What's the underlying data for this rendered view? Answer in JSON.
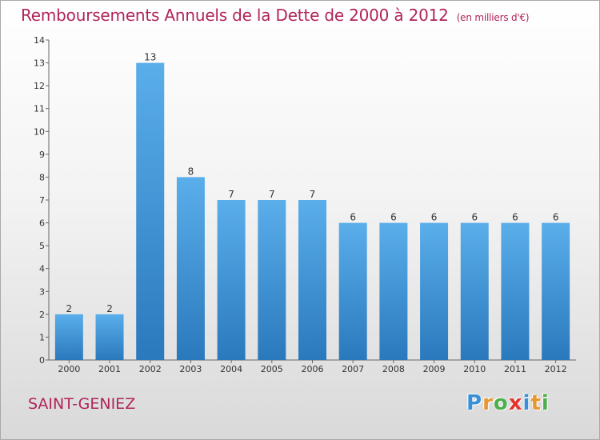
{
  "title": "Remboursements Annuels de la Dette de 2000 à 2012",
  "title_unit": "(en milliers d'€)",
  "city": "SAINT-GENIEZ",
  "logo": {
    "letters": [
      {
        "char": "P",
        "color": "#3a8fd6"
      },
      {
        "char": "r",
        "color": "#e8962f"
      },
      {
        "char": "o",
        "color": "#4cae4c"
      },
      {
        "char": "x",
        "color": "#e3342f"
      },
      {
        "char": "i",
        "color": "#3a8fd6"
      },
      {
        "char": "t",
        "color": "#e8962f"
      },
      {
        "char": "i",
        "color": "#4cae4c"
      }
    ]
  },
  "chart_data": {
    "type": "bar",
    "title": "Remboursements Annuels de la Dette de 2000 à 2012",
    "subtitle": "(en milliers d'€)",
    "categories": [
      "2000",
      "2001",
      "2002",
      "2003",
      "2004",
      "2005",
      "2006",
      "2007",
      "2008",
      "2009",
      "2010",
      "2011",
      "2012"
    ],
    "values": [
      2,
      2,
      13,
      8,
      7,
      7,
      7,
      6,
      6,
      6,
      6,
      6,
      6
    ],
    "ylim": [
      0,
      14
    ],
    "yticks": [
      0,
      1,
      2,
      3,
      4,
      5,
      6,
      7,
      8,
      9,
      10,
      11,
      12,
      13,
      14
    ],
    "grid": false,
    "bar_color_top": "#5aaeea",
    "bar_color_bottom": "#2a79bd"
  }
}
